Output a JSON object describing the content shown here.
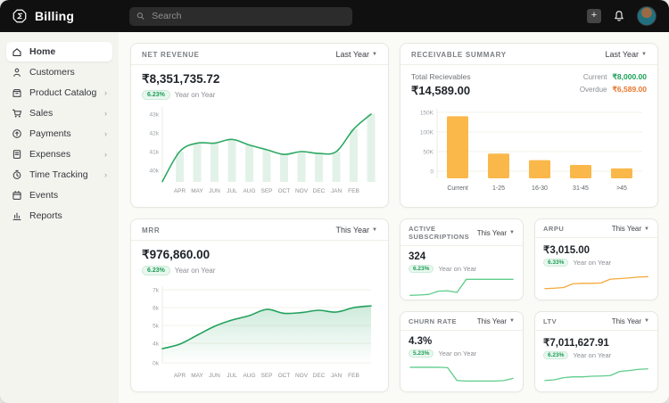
{
  "topbar": {
    "app_name": "Billing",
    "search_placeholder": "Search"
  },
  "sidebar": {
    "items": [
      {
        "label": "Home",
        "active": true,
        "has_submenu": false
      },
      {
        "label": "Customers",
        "active": false,
        "has_submenu": false
      },
      {
        "label": "Product Catalog",
        "active": false,
        "has_submenu": true
      },
      {
        "label": "Sales",
        "active": false,
        "has_submenu": true
      },
      {
        "label": "Payments",
        "active": false,
        "has_submenu": true
      },
      {
        "label": "Expenses",
        "active": false,
        "has_submenu": true
      },
      {
        "label": "Time Tracking",
        "active": false,
        "has_submenu": true
      },
      {
        "label": "Events",
        "active": false,
        "has_submenu": false
      },
      {
        "label": "Reports",
        "active": false,
        "has_submenu": false
      }
    ]
  },
  "cards": {
    "net_revenue": {
      "title": "NET REVENUE",
      "period": "Last Year",
      "value": "₹8,351,735.72",
      "change": "6.23%",
      "change_label": "Year on Year"
    },
    "receivable_summary": {
      "title": "RECEIVABLE SUMMARY",
      "period": "Last Year",
      "total_label": "Total Recievables",
      "total_value": "₹14,589.00",
      "current_label": "Current",
      "current_value": "₹8,000.00",
      "overdue_label": "Overdue",
      "overdue_value": "₹6,589.00"
    },
    "mrr": {
      "title": "MRR",
      "period": "This Year",
      "value": "₹976,860.00",
      "change": "6.23%",
      "change_label": "Year on Year"
    },
    "active_subscriptions": {
      "title": "ACTIVE SUBSCRIPTIONS",
      "period": "This Year",
      "value": "324",
      "change": "6.23%",
      "change_label": "Year on Year"
    },
    "arpu": {
      "title": "ARPU",
      "period": "This Year",
      "value": "₹3,015.00",
      "change": "6.33%",
      "change_label": "Year on Year"
    },
    "churn_rate": {
      "title": "CHURN RATE",
      "period": "This Year",
      "value": "4.3%",
      "change": "5.23%",
      "change_label": "Year on Year"
    },
    "ltv": {
      "title": "LTV",
      "period": "This Year",
      "value": "₹7,011,627.91",
      "change": "6.23%",
      "change_label": "Year on Year"
    }
  },
  "chart_data": [
    {
      "name": "net_revenue",
      "type": "line",
      "title": "Net Revenue monthly trend (with bars under line)",
      "x_labels": [
        "APR",
        "MAY",
        "JUN",
        "JUL",
        "AUG",
        "SEP",
        "OCT",
        "NOV",
        "DEC",
        "JAN",
        "FEB"
      ],
      "values_k": [
        39.4,
        41.0,
        41.45,
        41.45,
        41.65,
        41.35,
        41.1,
        40.85,
        41.0,
        40.9,
        41.0,
        42.2,
        43.0
      ],
      "note": "values in thousands; first and last points are unlabeled plot-edge points",
      "y_ticks": [
        {
          "label": "43k",
          "v": 43
        },
        {
          "label": "42k",
          "v": 42
        },
        {
          "label": "41k",
          "v": 41
        },
        {
          "label": "40k",
          "v": 40
        }
      ],
      "ylim_k": [
        39,
        43.5
      ],
      "grid": false,
      "color": "#2ea964",
      "fill": "#e3f2e9"
    },
    {
      "name": "receivable_summary",
      "type": "bar",
      "title": "Receivables aging",
      "categories": [
        "Current",
        "1-25",
        "16-30",
        "31-45",
        ">45"
      ],
      "values": [
        140000,
        45000,
        28000,
        16000,
        7000
      ],
      "y_ticks": [
        {
          "label": "150K",
          "v": 150
        },
        {
          "label": "100K",
          "v": 100
        },
        {
          "label": "50K",
          "v": 50
        },
        {
          "label": "0",
          "v": 0
        }
      ],
      "grid": true,
      "color": "#fbb84a"
    },
    {
      "name": "mrr",
      "type": "area",
      "title": "MRR monthly trend",
      "x_labels": [
        "APR",
        "MAY",
        "JUN",
        "JUL",
        "AUG",
        "SEP",
        "OCT",
        "NOV",
        "DEC",
        "JAN",
        "FEB"
      ],
      "values_k": [
        3.7,
        3.95,
        4.45,
        4.95,
        5.3,
        5.55,
        5.9,
        5.68,
        5.72,
        5.85,
        5.75,
        6.0,
        6.1
      ],
      "note": "values in thousands; first and last points are unlabeled plot-edge points",
      "y_ticks": [
        {
          "label": "7k",
          "v": 7
        },
        {
          "label": "6k",
          "v": 6
        },
        {
          "label": "5k",
          "v": 5
        },
        {
          "label": "4k",
          "v": 4
        },
        {
          "label": "0k",
          "v": 0
        }
      ],
      "grid": true,
      "color": "#21a15c"
    },
    {
      "name": "active_subscriptions",
      "type": "sparkline",
      "points_norm": [
        0.08,
        0.1,
        0.13,
        0.28,
        0.3,
        0.22,
        0.85,
        0.85,
        0.85,
        0.85,
        0.85,
        0.85
      ],
      "color": "#5ecd8b"
    },
    {
      "name": "arpu",
      "type": "sparkline",
      "points_norm": [
        0.15,
        0.17,
        0.2,
        0.38,
        0.4,
        0.4,
        0.42,
        0.6,
        0.63,
        0.66,
        0.7,
        0.72
      ],
      "color": "#f5a93b"
    },
    {
      "name": "churn_rate",
      "type": "sparkline",
      "points_norm": [
        0.78,
        0.78,
        0.78,
        0.78,
        0.76,
        0.15,
        0.12,
        0.12,
        0.12,
        0.12,
        0.14,
        0.25
      ],
      "color": "#5ecd8b"
    },
    {
      "name": "ltv",
      "type": "sparkline",
      "points_norm": [
        0.15,
        0.18,
        0.28,
        0.32,
        0.32,
        0.35,
        0.36,
        0.38,
        0.58,
        0.62,
        0.68,
        0.7
      ],
      "color": "#5ecd8b"
    }
  ],
  "colors": {
    "topbar_bg": "#101010",
    "accent_green": "#21a15c",
    "badge_text": "#1b9e55",
    "bar_orange": "#fbb84a",
    "overdue_orange": "#e8772e",
    "current_green": "#1ba158"
  }
}
